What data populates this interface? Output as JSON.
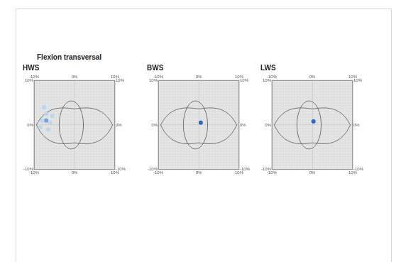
{
  "title": "Flexion transversal",
  "chart_data": [
    {
      "type": "scatter",
      "title": "HWS",
      "series": [
        {
          "color": "#bcd6ee",
          "marker": "circle",
          "x": [
            -8,
            -7,
            -6,
            -7.5,
            -6.5,
            -8.5,
            -5.5
          ],
          "values": [
            1,
            2.5,
            0.5,
            4,
            -1,
            -0.5,
            2
          ]
        },
        {
          "color": "#6fa3d8",
          "marker": "circle",
          "x": [
            -7
          ],
          "values": [
            1
          ]
        }
      ],
      "xlim": [
        -10,
        10
      ],
      "ylim": [
        -10,
        10
      ],
      "xticks": [
        {
          "value": -10,
          "label": "-10%"
        },
        {
          "value": 0,
          "label": "0%"
        },
        {
          "value": 10,
          "label": "10%"
        }
      ],
      "yticks": [
        {
          "value": -10,
          "label": "-10%"
        },
        {
          "value": 0,
          "label": "0%"
        },
        {
          "value": 10,
          "label": "10%"
        }
      ],
      "grid": true
    },
    {
      "type": "scatter",
      "title": "BWS",
      "series": [
        {
          "color": "#2b63c6",
          "marker": "circle",
          "x": [
            0.5
          ],
          "values": [
            0.5
          ]
        }
      ],
      "xlim": [
        -10,
        10
      ],
      "ylim": [
        -10,
        10
      ],
      "xticks": [
        {
          "value": -10,
          "label": "-10%"
        },
        {
          "value": 0,
          "label": "0%"
        },
        {
          "value": 10,
          "label": "10%"
        }
      ],
      "yticks": [
        {
          "value": -10,
          "label": "-10%"
        },
        {
          "value": 0,
          "label": "0%"
        },
        {
          "value": 10,
          "label": "10%"
        }
      ],
      "grid": true
    },
    {
      "type": "scatter",
      "title": "LWS",
      "series": [
        {
          "color": "#2b63c6",
          "marker": "circle",
          "x": [
            0.3
          ],
          "values": [
            0.8
          ]
        }
      ],
      "xlim": [
        -10,
        10
      ],
      "ylim": [
        -10,
        10
      ],
      "xticks": [
        {
          "value": -10,
          "label": "-10%"
        },
        {
          "value": 0,
          "label": "0%"
        },
        {
          "value": 10,
          "label": "10%"
        }
      ],
      "yticks": [
        {
          "value": -10,
          "label": "-10%"
        },
        {
          "value": 0,
          "label": "0%"
        },
        {
          "value": 10,
          "label": "10%"
        }
      ],
      "grid": true
    }
  ]
}
